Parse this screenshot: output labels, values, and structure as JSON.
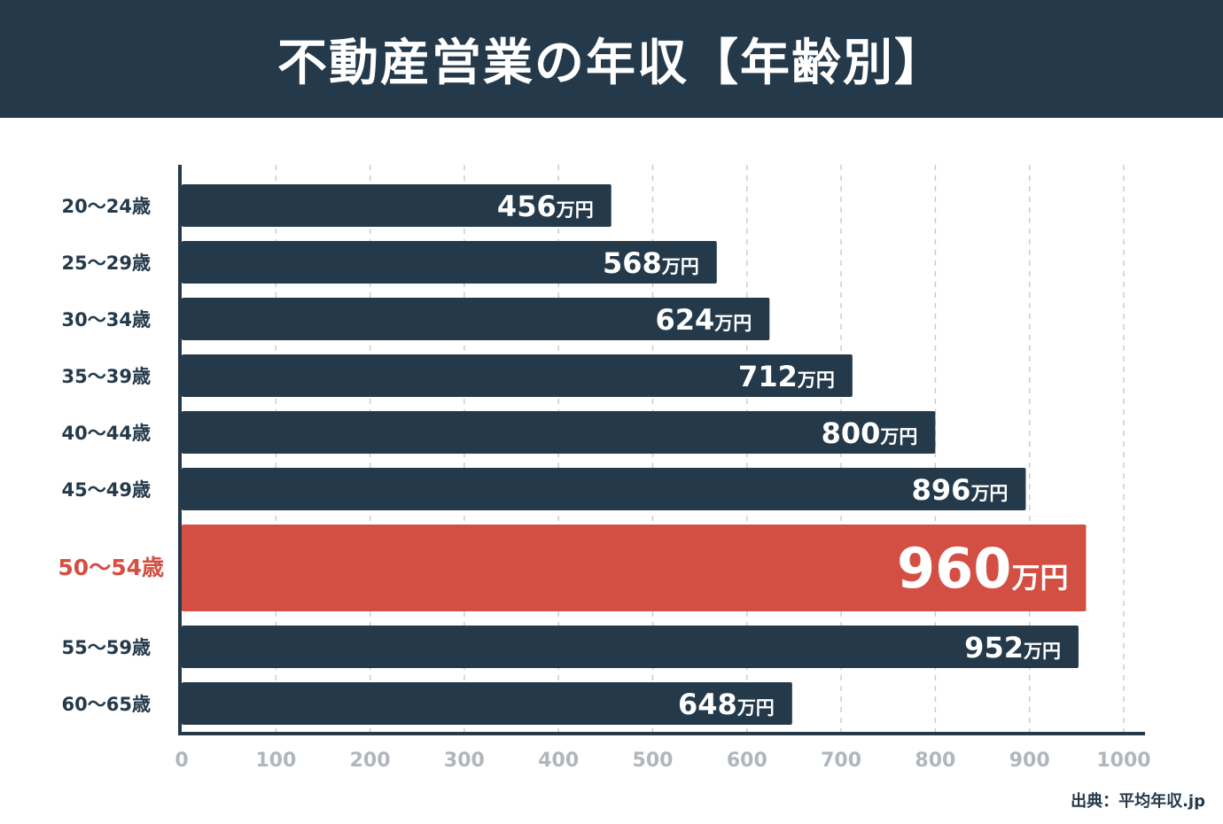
{
  "title": "不動産営業の年収【年齢別】",
  "source": "出典：平均年収.jp",
  "chart_data": {
    "type": "bar",
    "orientation": "horizontal",
    "categories": [
      "20〜24歳",
      "25〜29歳",
      "30〜34歳",
      "35〜39歳",
      "40〜44歳",
      "45〜49歳",
      "50〜54歳",
      "55〜59歳",
      "60〜65歳"
    ],
    "values": [
      456,
      568,
      624,
      712,
      800,
      896,
      960,
      952,
      648
    ],
    "unit": "万円",
    "highlight_index": 6,
    "xlim": [
      0,
      1000
    ],
    "xticks": [
      0,
      100,
      200,
      300,
      400,
      500,
      600,
      700,
      800,
      900,
      1000
    ],
    "grid": "vertical-dashed",
    "colors": {
      "bar": "#243a4b",
      "highlight": "#d44f43",
      "grid": "#cccccc",
      "tick_label": "#b0b6bb",
      "category_label": "#243a4b"
    }
  }
}
